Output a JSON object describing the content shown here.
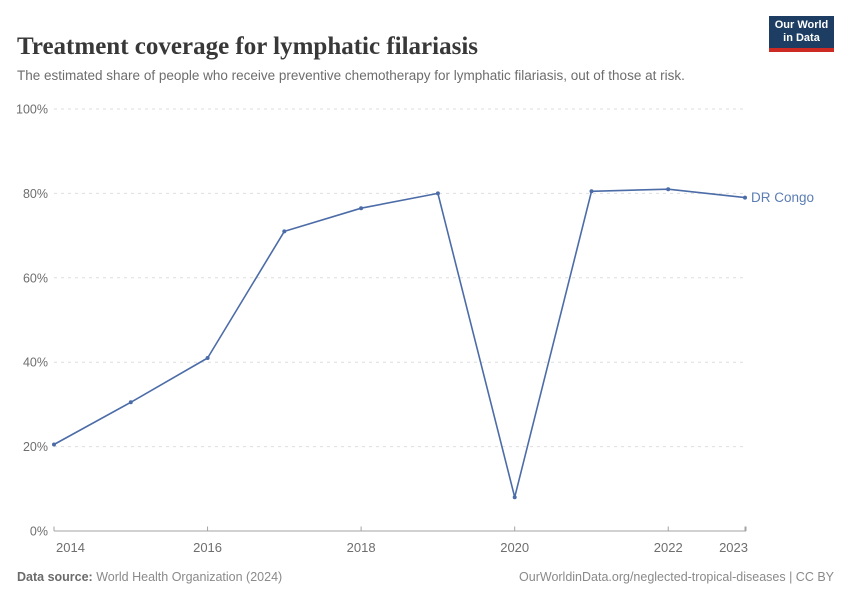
{
  "header": {
    "title": "Treatment coverage for lymphatic filariasis",
    "subtitle": "The estimated share of people who receive preventive chemotherapy for lymphatic filariasis, out of those at risk.",
    "logo": {
      "line1": "Our World",
      "line2": "in Data"
    }
  },
  "chart_data": {
    "type": "line",
    "title": "Treatment coverage for lymphatic filariasis",
    "xlabel": "",
    "ylabel": "",
    "x": [
      2014,
      2015,
      2016,
      2017,
      2018,
      2019,
      2020,
      2021,
      2022,
      2023
    ],
    "series": [
      {
        "name": "DR Congo",
        "values": [
          20.5,
          30.5,
          41,
          71,
          76.5,
          80,
          8,
          80.5,
          81,
          79
        ]
      }
    ],
    "ylim": [
      0,
      100
    ],
    "xlim": [
      2014,
      2023
    ],
    "y_ticks": [
      {
        "value": 0,
        "label": "0%"
      },
      {
        "value": 20,
        "label": "20%"
      },
      {
        "value": 40,
        "label": "40%"
      },
      {
        "value": 60,
        "label": "60%"
      },
      {
        "value": 80,
        "label": "80%"
      },
      {
        "value": 100,
        "label": "100%"
      }
    ],
    "x_ticks": [
      {
        "value": 2014,
        "label": "2014"
      },
      {
        "value": 2016,
        "label": "2016"
      },
      {
        "value": 2018,
        "label": "2018"
      },
      {
        "value": 2020,
        "label": "2020"
      },
      {
        "value": 2022,
        "label": "2022"
      },
      {
        "value": 2023,
        "label": "2023"
      }
    ],
    "grid": "horizontal-dashed",
    "legend": "end-of-line-label"
  },
  "footer": {
    "datasource_label": "Data source:",
    "datasource_value": " World Health Organization (2024)",
    "credit": "OurWorldinData.org/neglected-tropical-diseases | CC BY"
  },
  "colors": {
    "line": "#4c6ca8",
    "entity_label": "#5b7db3",
    "grid": "#dedede",
    "axis": "#a3a3a3",
    "tick_text": "#6e6e6e",
    "title_text": "#383838",
    "subtitle_text": "#6d6d6d",
    "logo_bg": "#1d3d63",
    "logo_red": "#cc2a23",
    "background": "#ffffff"
  }
}
